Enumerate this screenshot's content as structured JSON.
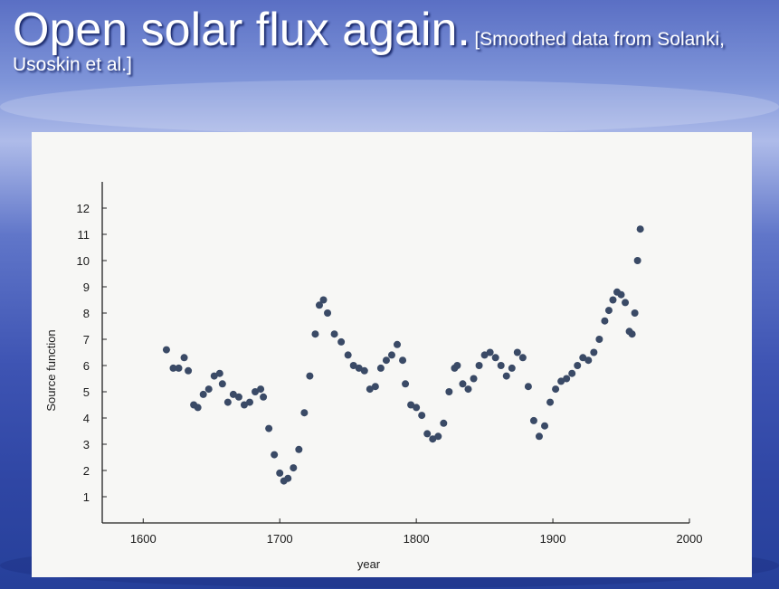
{
  "slide": {
    "title": "Open solar flux again.",
    "subtitle": "[Smoothed data from Solanki, Usoskin et al.]"
  },
  "colors": {
    "marker": "#3a4a66",
    "axis": "#222222",
    "panel": "#f7f7f5"
  },
  "chart_data": {
    "type": "scatter",
    "title": "",
    "xlabel": "year",
    "ylabel": "Source function",
    "xlim": [
      1570,
      2000
    ],
    "ylim": [
      0,
      13
    ],
    "xticks": [
      1600,
      1700,
      1800,
      1900,
      2000
    ],
    "yticks": [
      1,
      2,
      3,
      4,
      5,
      6,
      7,
      8,
      9,
      10,
      11,
      12
    ],
    "grid": false,
    "legend": "none",
    "series": [
      {
        "x": [
          1617,
          1622,
          1626,
          1630,
          1633,
          1637,
          1640,
          1644,
          1648,
          1652,
          1656,
          1658,
          1662,
          1666,
          1670,
          1674,
          1678,
          1682,
          1686,
          1688,
          1692,
          1696,
          1700,
          1703,
          1706,
          1710,
          1714,
          1718,
          1722,
          1726,
          1729,
          1732,
          1735,
          1740,
          1745,
          1750,
          1754,
          1758,
          1762,
          1766,
          1770,
          1774,
          1778,
          1782,
          1786,
          1790,
          1792,
          1796,
          1800,
          1804,
          1808,
          1812,
          1816,
          1820,
          1824,
          1828,
          1830,
          1834,
          1838,
          1842,
          1846,
          1850,
          1854,
          1858,
          1862,
          1866,
          1870,
          1874,
          1878,
          1882,
          1886,
          1890,
          1894,
          1898,
          1902,
          1906,
          1910,
          1914,
          1918,
          1922,
          1926,
          1930,
          1934,
          1938,
          1941,
          1944,
          1947,
          1950,
          1953,
          1956,
          1958,
          1960,
          1962,
          1964
        ],
        "y": [
          6.6,
          5.9,
          5.9,
          6.3,
          5.8,
          4.5,
          4.4,
          4.9,
          5.1,
          5.6,
          5.7,
          5.3,
          4.6,
          4.9,
          4.8,
          4.5,
          4.6,
          5.0,
          5.1,
          4.8,
          3.6,
          2.6,
          1.9,
          1.6,
          1.7,
          2.1,
          2.8,
          4.2,
          5.6,
          7.2,
          8.3,
          8.5,
          8.0,
          7.2,
          6.9,
          6.4,
          6.0,
          5.9,
          5.8,
          5.1,
          5.2,
          5.9,
          6.2,
          6.4,
          6.8,
          6.2,
          5.3,
          4.5,
          4.4,
          4.1,
          3.4,
          3.2,
          3.3,
          3.8,
          5.0,
          5.9,
          6.0,
          5.3,
          5.1,
          5.5,
          6.0,
          6.4,
          6.5,
          6.3,
          6.0,
          5.6,
          5.9,
          6.5,
          6.3,
          5.2,
          3.9,
          3.3,
          3.7,
          4.6,
          5.1,
          5.4,
          5.5,
          5.7,
          6.0,
          6.3,
          6.2,
          6.5,
          7.0,
          7.7,
          8.1,
          8.5,
          8.8,
          8.7,
          8.4,
          7.3,
          7.2,
          8.0,
          10.0,
          11.2
        ]
      }
    ]
  }
}
